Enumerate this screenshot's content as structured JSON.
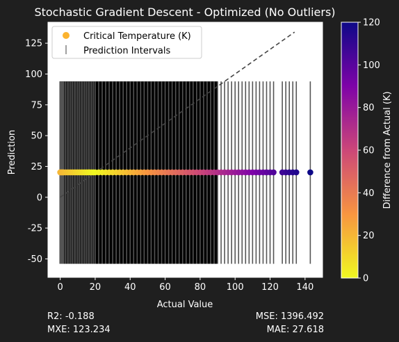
{
  "chart_data": {
    "type": "scatter",
    "title": "Stochastic Gradient Descent - Optimized (No Outliers)",
    "xlabel": "Actual Value",
    "ylabel": "Prediction",
    "xlim": [
      -7,
      150
    ],
    "ylim": [
      -65,
      142
    ],
    "xticks": [
      0,
      20,
      40,
      60,
      80,
      100,
      120,
      140
    ],
    "yticks": [
      -50,
      -25,
      0,
      25,
      50,
      75,
      100,
      125
    ],
    "grid": false,
    "legend_position": "top-left",
    "legend": [
      "Critical Temperature (K)",
      "Prediction Intervals"
    ],
    "reference_line": {
      "x": [
        0,
        134
      ],
      "y": [
        0,
        134
      ],
      "style": "dashed",
      "color": "#444444"
    },
    "prediction_value": 20.2,
    "interval": {
      "low": -54,
      "high": 94
    },
    "x_values": [
      0,
      0.5,
      1,
      1.5,
      2,
      3,
      4,
      5,
      6,
      7,
      8,
      9,
      10,
      11,
      12,
      13,
      14,
      15,
      16,
      17,
      18,
      19,
      20,
      22,
      24,
      26,
      28,
      30,
      32,
      34,
      36,
      38,
      40,
      42,
      44,
      46,
      48,
      50,
      52,
      54,
      56,
      58,
      60,
      62,
      64,
      66,
      68,
      70,
      72,
      74,
      76,
      78,
      80,
      82,
      84,
      86,
      88,
      90,
      92,
      94,
      96,
      98,
      100,
      102,
      104,
      106,
      108,
      110,
      112,
      114,
      116,
      118,
      120,
      122,
      127,
      129,
      131,
      133,
      135,
      143
    ],
    "colorbar": {
      "label": "Difference from Actual (K)",
      "ticks": [
        0,
        20,
        40,
        60,
        80,
        100,
        120
      ],
      "min": 0,
      "max": 120,
      "colormap": "plasma_r"
    },
    "series": [
      {
        "name": "Critical Temperature (K)",
        "color": "#fbb32f"
      },
      {
        "name": "Prediction Intervals",
        "color": "#808080"
      }
    ]
  },
  "stats": {
    "r2": "R2: -0.188",
    "mse": "MSE: 1396.492",
    "mxe": "MXE: 123.234",
    "mae": "MAE: 27.618"
  }
}
